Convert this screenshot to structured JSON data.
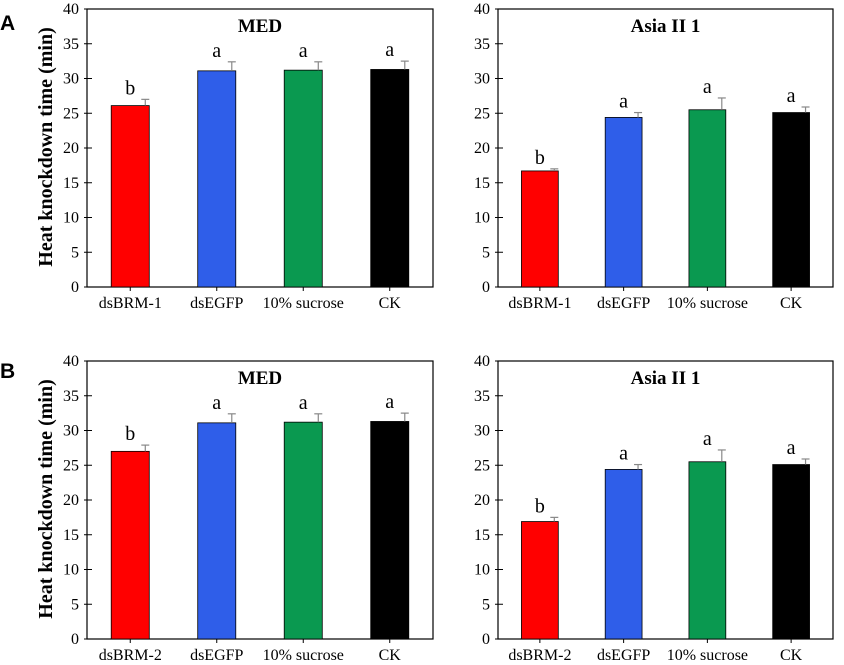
{
  "figure": {
    "panel_labels": [
      "A",
      "B"
    ],
    "y_axis_label": "Heat knockdown time (min)"
  },
  "colors": {
    "dsBRM": "#ff0000",
    "dsEGFP": "#2f5ee9",
    "sucrose": "#0a9950",
    "CK": "#000000",
    "axis": "#000000",
    "errorbar": "#888888"
  },
  "chart_data": [
    {
      "type": "bar",
      "panel": "A",
      "title": "MED",
      "categories": [
        "dsBRM-1",
        "dsEGFP",
        "10% sucrose",
        "CK"
      ],
      "values": [
        26.1,
        31.1,
        31.2,
        31.3
      ],
      "errors": [
        0.9,
        1.3,
        1.2,
        1.2
      ],
      "significance": [
        "b",
        "a",
        "a",
        "a"
      ],
      "xlabel": "",
      "ylabel": "Heat knockdown time (min)",
      "ylim": [
        0,
        40
      ],
      "yticks": [
        "0",
        "5",
        "10",
        "15",
        "20",
        "25",
        "30",
        "35",
        "40"
      ]
    },
    {
      "type": "bar",
      "panel": "A",
      "title": "Asia II 1",
      "categories": [
        "dsBRM-1",
        "dsEGFP",
        "10% sucrose",
        "CK"
      ],
      "values": [
        16.7,
        24.4,
        25.5,
        25.1
      ],
      "errors": [
        0.3,
        0.7,
        1.7,
        0.8
      ],
      "significance": [
        "b",
        "a",
        "a",
        "a"
      ],
      "xlabel": "",
      "ylabel": "",
      "ylim": [
        0,
        40
      ],
      "yticks": [
        "0",
        "5",
        "10",
        "15",
        "20",
        "25",
        "30",
        "35",
        "40"
      ]
    },
    {
      "type": "bar",
      "panel": "B",
      "title": "MED",
      "categories": [
        "dsBRM-2",
        "dsEGFP",
        "10% sucrose",
        "CK"
      ],
      "values": [
        27.0,
        31.1,
        31.2,
        31.3
      ],
      "errors": [
        0.9,
        1.3,
        1.2,
        1.2
      ],
      "significance": [
        "b",
        "a",
        "a",
        "a"
      ],
      "xlabel": "",
      "ylabel": "Heat knockdown time (min)",
      "ylim": [
        0,
        40
      ],
      "yticks": [
        "0",
        "5",
        "10",
        "15",
        "20",
        "25",
        "30",
        "35",
        "40"
      ]
    },
    {
      "type": "bar",
      "panel": "B",
      "title": "Asia II 1",
      "categories": [
        "dsBRM-2",
        "dsEGFP",
        "10% sucrose",
        "CK"
      ],
      "values": [
        16.9,
        24.4,
        25.5,
        25.1
      ],
      "errors": [
        0.6,
        0.7,
        1.7,
        0.8
      ],
      "significance": [
        "b",
        "a",
        "a",
        "a"
      ],
      "xlabel": "",
      "ylabel": "",
      "ylim": [
        0,
        40
      ],
      "yticks": [
        "0",
        "5",
        "10",
        "15",
        "20",
        "25",
        "30",
        "35",
        "40"
      ]
    }
  ]
}
